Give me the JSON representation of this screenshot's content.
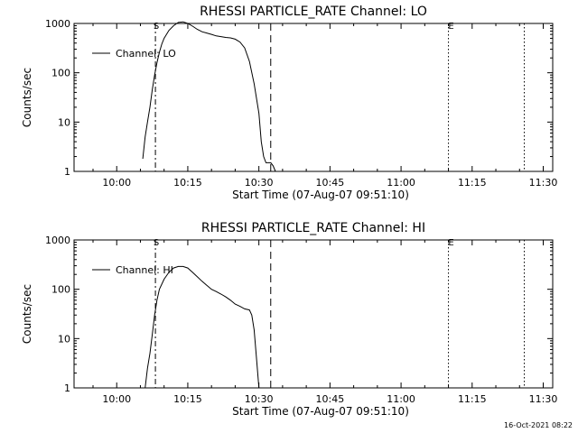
{
  "chart_data": [
    {
      "type": "line",
      "title": "RHESSI PARTICLE_RATE Channel: LO",
      "xlabel": "Start Time (07-Aug-07 09:51:10)",
      "ylabel": "Counts/sec",
      "yscale": "log",
      "ylim": [
        1,
        1000
      ],
      "xlim": [
        "09:51",
        "11:32"
      ],
      "x_tick_labels": [
        "10:00",
        "10:15",
        "10:30",
        "10:45",
        "11:00",
        "11:15",
        "11:30"
      ],
      "y_tick_labels": [
        "1",
        "10",
        "100",
        "1000"
      ],
      "legend": "top-left",
      "series": [
        {
          "name": "Channel: LO",
          "x": [
            "10:05:30",
            "10:06:00",
            "10:06:30",
            "10:07:00",
            "10:07:30",
            "10:08:00",
            "10:08:30",
            "10:09:00",
            "10:09:30",
            "10:10:00",
            "10:11:00",
            "10:12:00",
            "10:13:00",
            "10:14:00",
            "10:15:00",
            "10:16:00",
            "10:17:00",
            "10:18:00",
            "10:19:00",
            "10:20:00",
            "10:21:00",
            "10:22:00",
            "10:23:00",
            "10:24:00",
            "10:25:00",
            "10:26:00",
            "10:27:00",
            "10:28:00",
            "10:29:00",
            "10:30:00",
            "10:30:30",
            "10:31:00",
            "10:31:30",
            "10:32:00",
            "10:32:30",
            "10:33:00",
            "10:33:30"
          ],
          "values": [
            1.8,
            5,
            10,
            20,
            45,
            90,
            160,
            260,
            380,
            500,
            720,
            900,
            1050,
            1080,
            1000,
            880,
            760,
            680,
            640,
            600,
            560,
            540,
            520,
            510,
            480,
            420,
            320,
            170,
            60,
            15,
            4,
            2,
            1.5,
            1.5,
            1.5,
            1.3,
            1.0
          ]
        }
      ],
      "annotations": [
        "S",
        "E"
      ]
    },
    {
      "type": "line",
      "title": "RHESSI PARTICLE_RATE Channel: HI",
      "xlabel": "Start Time (07-Aug-07 09:51:10)",
      "ylabel": "Counts/sec",
      "yscale": "log",
      "ylim": [
        1,
        1000
      ],
      "xlim": [
        "09:51",
        "11:32"
      ],
      "x_tick_labels": [
        "10:00",
        "10:15",
        "10:30",
        "10:45",
        "11:00",
        "11:15",
        "11:30"
      ],
      "y_tick_labels": [
        "1",
        "10",
        "100",
        "1000"
      ],
      "legend": "top-left",
      "series": [
        {
          "name": "Channel: HI",
          "x": [
            "10:06:00",
            "10:06:30",
            "10:07:00",
            "10:07:30",
            "10:08:00",
            "10:08:30",
            "10:09:00",
            "10:10:00",
            "10:11:00",
            "10:12:00",
            "10:13:00",
            "10:14:00",
            "10:15:00",
            "10:16:00",
            "10:17:00",
            "10:18:00",
            "10:19:00",
            "10:20:00",
            "10:21:00",
            "10:22:00",
            "10:23:00",
            "10:24:00",
            "10:25:00",
            "10:26:00",
            "10:27:00",
            "10:28:00",
            "10:28:30",
            "10:29:00",
            "10:29:30",
            "10:30:00"
          ],
          "values": [
            1.0,
            2.5,
            5,
            12,
            30,
            60,
            100,
            160,
            220,
            270,
            290,
            290,
            270,
            220,
            180,
            145,
            120,
            100,
            90,
            80,
            70,
            60,
            50,
            45,
            40,
            38,
            30,
            15,
            4,
            1.0
          ]
        }
      ],
      "annotations": [
        "S",
        "E"
      ]
    }
  ],
  "footer": {
    "timestamp": "16-Oct-2021 08:22"
  }
}
